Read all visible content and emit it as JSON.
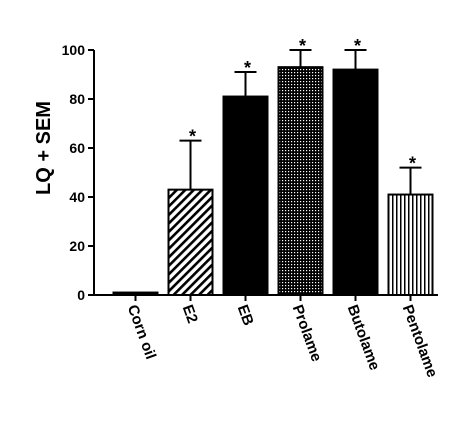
{
  "chart_data": {
    "type": "bar",
    "title": "",
    "xlabel": "",
    "ylabel": "LQ + SEM",
    "ylim": [
      0,
      100
    ],
    "yticks": [
      0,
      20,
      40,
      60,
      80,
      100
    ],
    "grid": false,
    "categories": [
      "Corn oil",
      "E2",
      "EB",
      "Prolame",
      "Butolame",
      "Pentolame"
    ],
    "values": [
      1,
      43,
      81,
      93,
      92,
      41
    ],
    "errors": [
      0.5,
      20,
      10,
      7,
      8,
      11
    ],
    "significance": [
      "",
      "*",
      "*",
      "*",
      "*",
      "*"
    ],
    "fills": [
      "solid-black",
      "diagonal-hatch",
      "solid-black",
      "crosshatch-dots",
      "solid-black",
      "vertical-lines"
    ]
  }
}
